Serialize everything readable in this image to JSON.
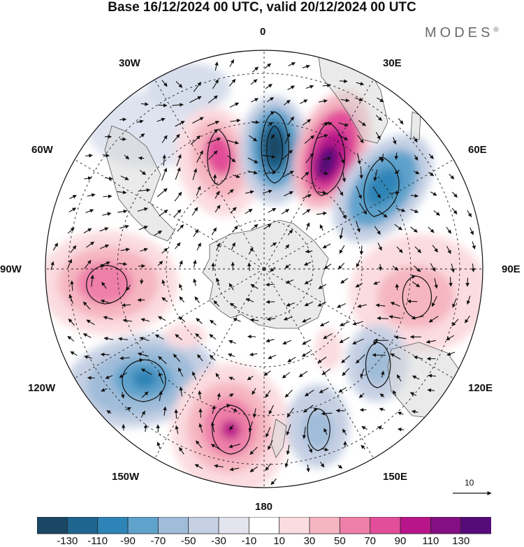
{
  "title": "Base 16/12/2024 00 UTC, valid 20/12/2024 00 UTC",
  "brand": "MODES",
  "brand_mark": "®",
  "projection": "south-polar-stereographic",
  "longitude_labels": {
    "lon_0": "0",
    "lon_30e": "30E",
    "lon_60e": "60E",
    "lon_90e": "90E",
    "lon_120e": "120E",
    "lon_150e": "150E",
    "lon_180": "180",
    "lon_150w": "150W",
    "lon_120w": "120W",
    "lon_90w": "90W",
    "lon_60w": "60W",
    "lon_30w": "30W"
  },
  "reference_vector_label": "10",
  "colorbar": {
    "tick_labels": [
      "-130",
      "-110",
      "-90",
      "-70",
      "-50",
      "-30",
      "-10",
      "10",
      "30",
      "50",
      "70",
      "90",
      "110",
      "130"
    ],
    "colors": [
      "#1a4763",
      "#1e6590",
      "#2e84b6",
      "#5fa2cc",
      "#9fbcd9",
      "#c6d0e4",
      "#e4e4ef",
      "#ffffff",
      "#fbdce0",
      "#f5b6c1",
      "#ee7fa8",
      "#e24e99",
      "#b9158a",
      "#840e84",
      "#560b7a"
    ]
  },
  "anomaly_centers": [
    {
      "lon": 0,
      "sign": "negative",
      "magnitude": 130
    },
    {
      "lon": 28,
      "sign": "positive",
      "magnitude": 130
    },
    {
      "lon": 52,
      "sign": "negative",
      "magnitude": 90
    },
    {
      "lon": -25,
      "sign": "positive",
      "magnitude": 80
    },
    {
      "lon": -85,
      "sign": "positive",
      "magnitude": 70
    },
    {
      "lon": 102,
      "sign": "positive",
      "magnitude": 40
    },
    {
      "lon": -120,
      "sign": "negative",
      "magnitude": 90
    },
    {
      "lon": -170,
      "sign": "positive",
      "magnitude": 90
    },
    {
      "lon": 130,
      "sign": "negative",
      "magnitude": 50
    },
    {
      "lon": 158,
      "sign": "negative",
      "magnitude": 50
    }
  ]
}
